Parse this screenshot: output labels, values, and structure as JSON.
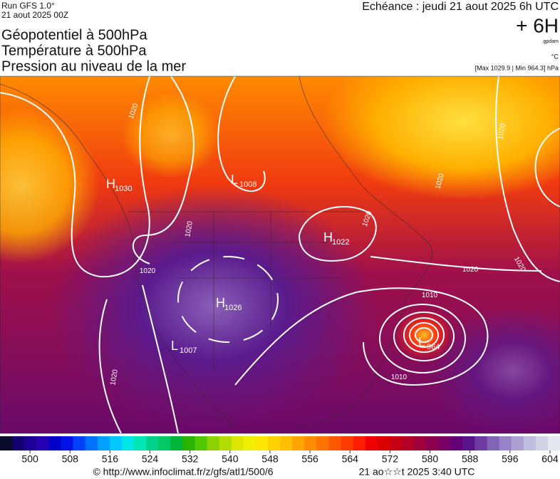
{
  "header": {
    "run": "Run GFS 1.0°",
    "run_date": "21 aout 2025 00Z",
    "titles": [
      "Géopotentiel à 500hPa",
      "Température à 500hPa",
      "Pression au niveau de la mer"
    ],
    "echeance": "Echéance : jeudi 21 aout 2025 6h UTC",
    "step": "+ 6H",
    "unit_geo": "gpdam",
    "unit_temp": "°C",
    "extremes": "[Max 1029.9 | Min 964.3] hPa"
  },
  "map": {
    "centers": [
      {
        "letter": "H",
        "value": 1030
      },
      {
        "letter": "L",
        "value": 1008
      },
      {
        "letter": "H",
        "value": 1022
      },
      {
        "letter": "H",
        "value": 1026
      },
      {
        "letter": "L",
        "value": 1007
      },
      {
        "letter": "L",
        "value": 964
      }
    ],
    "isobar_labels": [
      1020,
      1020,
      1020,
      1020,
      1020,
      1020,
      1020,
      1020,
      1020,
      1010,
      1010
    ]
  },
  "colorbar": {
    "range": [
      494,
      606
    ],
    "ticks": [
      500,
      508,
      516,
      524,
      532,
      540,
      548,
      556,
      564,
      572,
      580,
      588,
      596,
      604
    ],
    "colors": [
      "#0a0a2a",
      "#14006e",
      "#1e0096",
      "#2800b4",
      "#0000c8",
      "#0014e6",
      "#0040ff",
      "#0070ff",
      "#00a0ff",
      "#00c8ff",
      "#00e6e6",
      "#00e6b4",
      "#00d28c",
      "#00c864",
      "#00b43c",
      "#28b400",
      "#50c800",
      "#8cd200",
      "#b4dc00",
      "#dce600",
      "#f0f000",
      "#ffe600",
      "#ffd200",
      "#ffbe00",
      "#ffa500",
      "#ff8c00",
      "#ff7300",
      "#ff5a00",
      "#ff3c00",
      "#ff1e00",
      "#f00000",
      "#dc0000",
      "#c80014",
      "#b40028",
      "#a0003c",
      "#8c0050",
      "#780064",
      "#640078",
      "#5a148c",
      "#6e3ca0",
      "#8264b4",
      "#9682c8",
      "#aaa0d2",
      "#bebedc",
      "#d2d2e6",
      "#e6e6f0"
    ]
  },
  "footer": {
    "url": "© http://www.infoclimat.fr/z/gfs/atl1/500/6",
    "stamp": "21 ao☆☆t 2025  3:40 UTC"
  }
}
